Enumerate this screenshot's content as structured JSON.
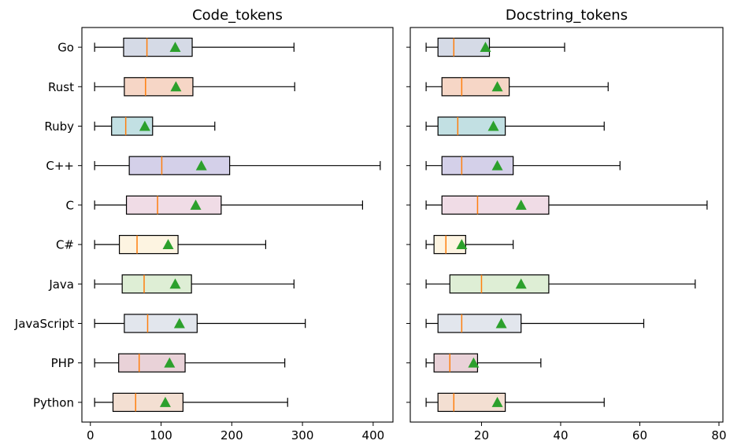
{
  "chart_data": [
    {
      "type": "boxplot",
      "title": "Code_tokens",
      "orientation": "horizontal",
      "xlim": [
        -12,
        428
      ],
      "xticks": [
        0,
        100,
        200,
        300,
        400
      ],
      "grid": false,
      "categories": [
        "Go",
        "Rust",
        "Ruby",
        "C++",
        "C",
        "C#",
        "Java",
        "JavaScript",
        "PHP",
        "Python"
      ],
      "boxes": [
        {
          "label": "Go",
          "whisker_low": 6,
          "q1": 47,
          "median": 80,
          "q3": 144,
          "whisker_high": 288,
          "mean": 120,
          "color": "#d5dae6"
        },
        {
          "label": "Rust",
          "whisker_low": 6,
          "q1": 48,
          "median": 78,
          "q3": 145,
          "whisker_high": 289,
          "mean": 121,
          "color": "#f6d6c6"
        },
        {
          "label": "Ruby",
          "whisker_low": 6,
          "q1": 30,
          "median": 50,
          "q3": 88,
          "whisker_high": 176,
          "mean": 77,
          "color": "#c2e0e3"
        },
        {
          "label": "C++",
          "whisker_low": 6,
          "q1": 55,
          "median": 101,
          "q3": 197,
          "whisker_high": 410,
          "mean": 157,
          "color": "#d4d0e9"
        },
        {
          "label": "C",
          "whisker_low": 6,
          "q1": 51,
          "median": 95,
          "q3": 185,
          "whisker_high": 385,
          "mean": 149,
          "color": "#f0dce6"
        },
        {
          "label": "C#",
          "whisker_low": 6,
          "q1": 41,
          "median": 66,
          "q3": 124,
          "whisker_high": 248,
          "mean": 110,
          "color": "#fdf4e1"
        },
        {
          "label": "Java",
          "whisker_low": 6,
          "q1": 45,
          "median": 76,
          "q3": 143,
          "whisker_high": 288,
          "mean": 120,
          "color": "#deeed5"
        },
        {
          "label": "JavaScript",
          "whisker_low": 6,
          "q1": 48,
          "median": 81,
          "q3": 151,
          "whisker_high": 304,
          "mean": 126,
          "color": "#e2e6ed"
        },
        {
          "label": "PHP",
          "whisker_low": 6,
          "q1": 40,
          "median": 69,
          "q3": 134,
          "whisker_high": 275,
          "mean": 112,
          "color": "#e9d2d8"
        },
        {
          "label": "Python",
          "whisker_low": 6,
          "q1": 32,
          "median": 64,
          "q3": 131,
          "whisker_high": 279,
          "mean": 106,
          "color": "#f3dfd2"
        }
      ]
    },
    {
      "type": "boxplot",
      "title": "Docstring_tokens",
      "orientation": "horizontal",
      "xlim": [
        2,
        81
      ],
      "xticks": [
        20,
        40,
        60,
        80
      ],
      "grid": false,
      "categories": [
        "Go",
        "Rust",
        "Ruby",
        "C++",
        "C",
        "C#",
        "Java",
        "JavaScript",
        "PHP",
        "Python"
      ],
      "boxes": [
        {
          "label": "Go",
          "whisker_low": 6,
          "q1": 9,
          "median": 13,
          "q3": 22,
          "whisker_high": 41,
          "mean": 21,
          "color": "#d5dae6"
        },
        {
          "label": "Rust",
          "whisker_low": 6,
          "q1": 10,
          "median": 15,
          "q3": 27,
          "whisker_high": 52,
          "mean": 24,
          "color": "#f6d6c6"
        },
        {
          "label": "Ruby",
          "whisker_low": 6,
          "q1": 9,
          "median": 14,
          "q3": 26,
          "whisker_high": 51,
          "mean": 23,
          "color": "#c2e0e3"
        },
        {
          "label": "C++",
          "whisker_low": 6,
          "q1": 10,
          "median": 15,
          "q3": 28,
          "whisker_high": 55,
          "mean": 24,
          "color": "#d4d0e9"
        },
        {
          "label": "C",
          "whisker_low": 6,
          "q1": 10,
          "median": 19,
          "q3": 37,
          "whisker_high": 77,
          "mean": 30,
          "color": "#f0dce6"
        },
        {
          "label": "C#",
          "whisker_low": 6,
          "q1": 8,
          "median": 11,
          "q3": 16,
          "whisker_high": 28,
          "mean": 15,
          "color": "#fdf4e1"
        },
        {
          "label": "Java",
          "whisker_low": 6,
          "q1": 12,
          "median": 20,
          "q3": 37,
          "whisker_high": 74,
          "mean": 30,
          "color": "#deeed5"
        },
        {
          "label": "JavaScript",
          "whisker_low": 6,
          "q1": 9,
          "median": 15,
          "q3": 30,
          "whisker_high": 61,
          "mean": 25,
          "color": "#e2e6ed"
        },
        {
          "label": "PHP",
          "whisker_low": 6,
          "q1": 8,
          "median": 12,
          "q3": 19,
          "whisker_high": 35,
          "mean": 18,
          "color": "#e9d2d8"
        },
        {
          "label": "Python",
          "whisker_low": 6,
          "q1": 9,
          "median": 13,
          "q3": 26,
          "whisker_high": 51,
          "mean": 24,
          "color": "#f3dfd2"
        }
      ]
    }
  ],
  "colors": {
    "median_line": "#ff7f0e",
    "mean_marker": "#2ca02c",
    "box_edge": "#000000",
    "whisker": "#000000"
  },
  "markers": {
    "mean_marker_icon": "triangle-up-icon"
  }
}
